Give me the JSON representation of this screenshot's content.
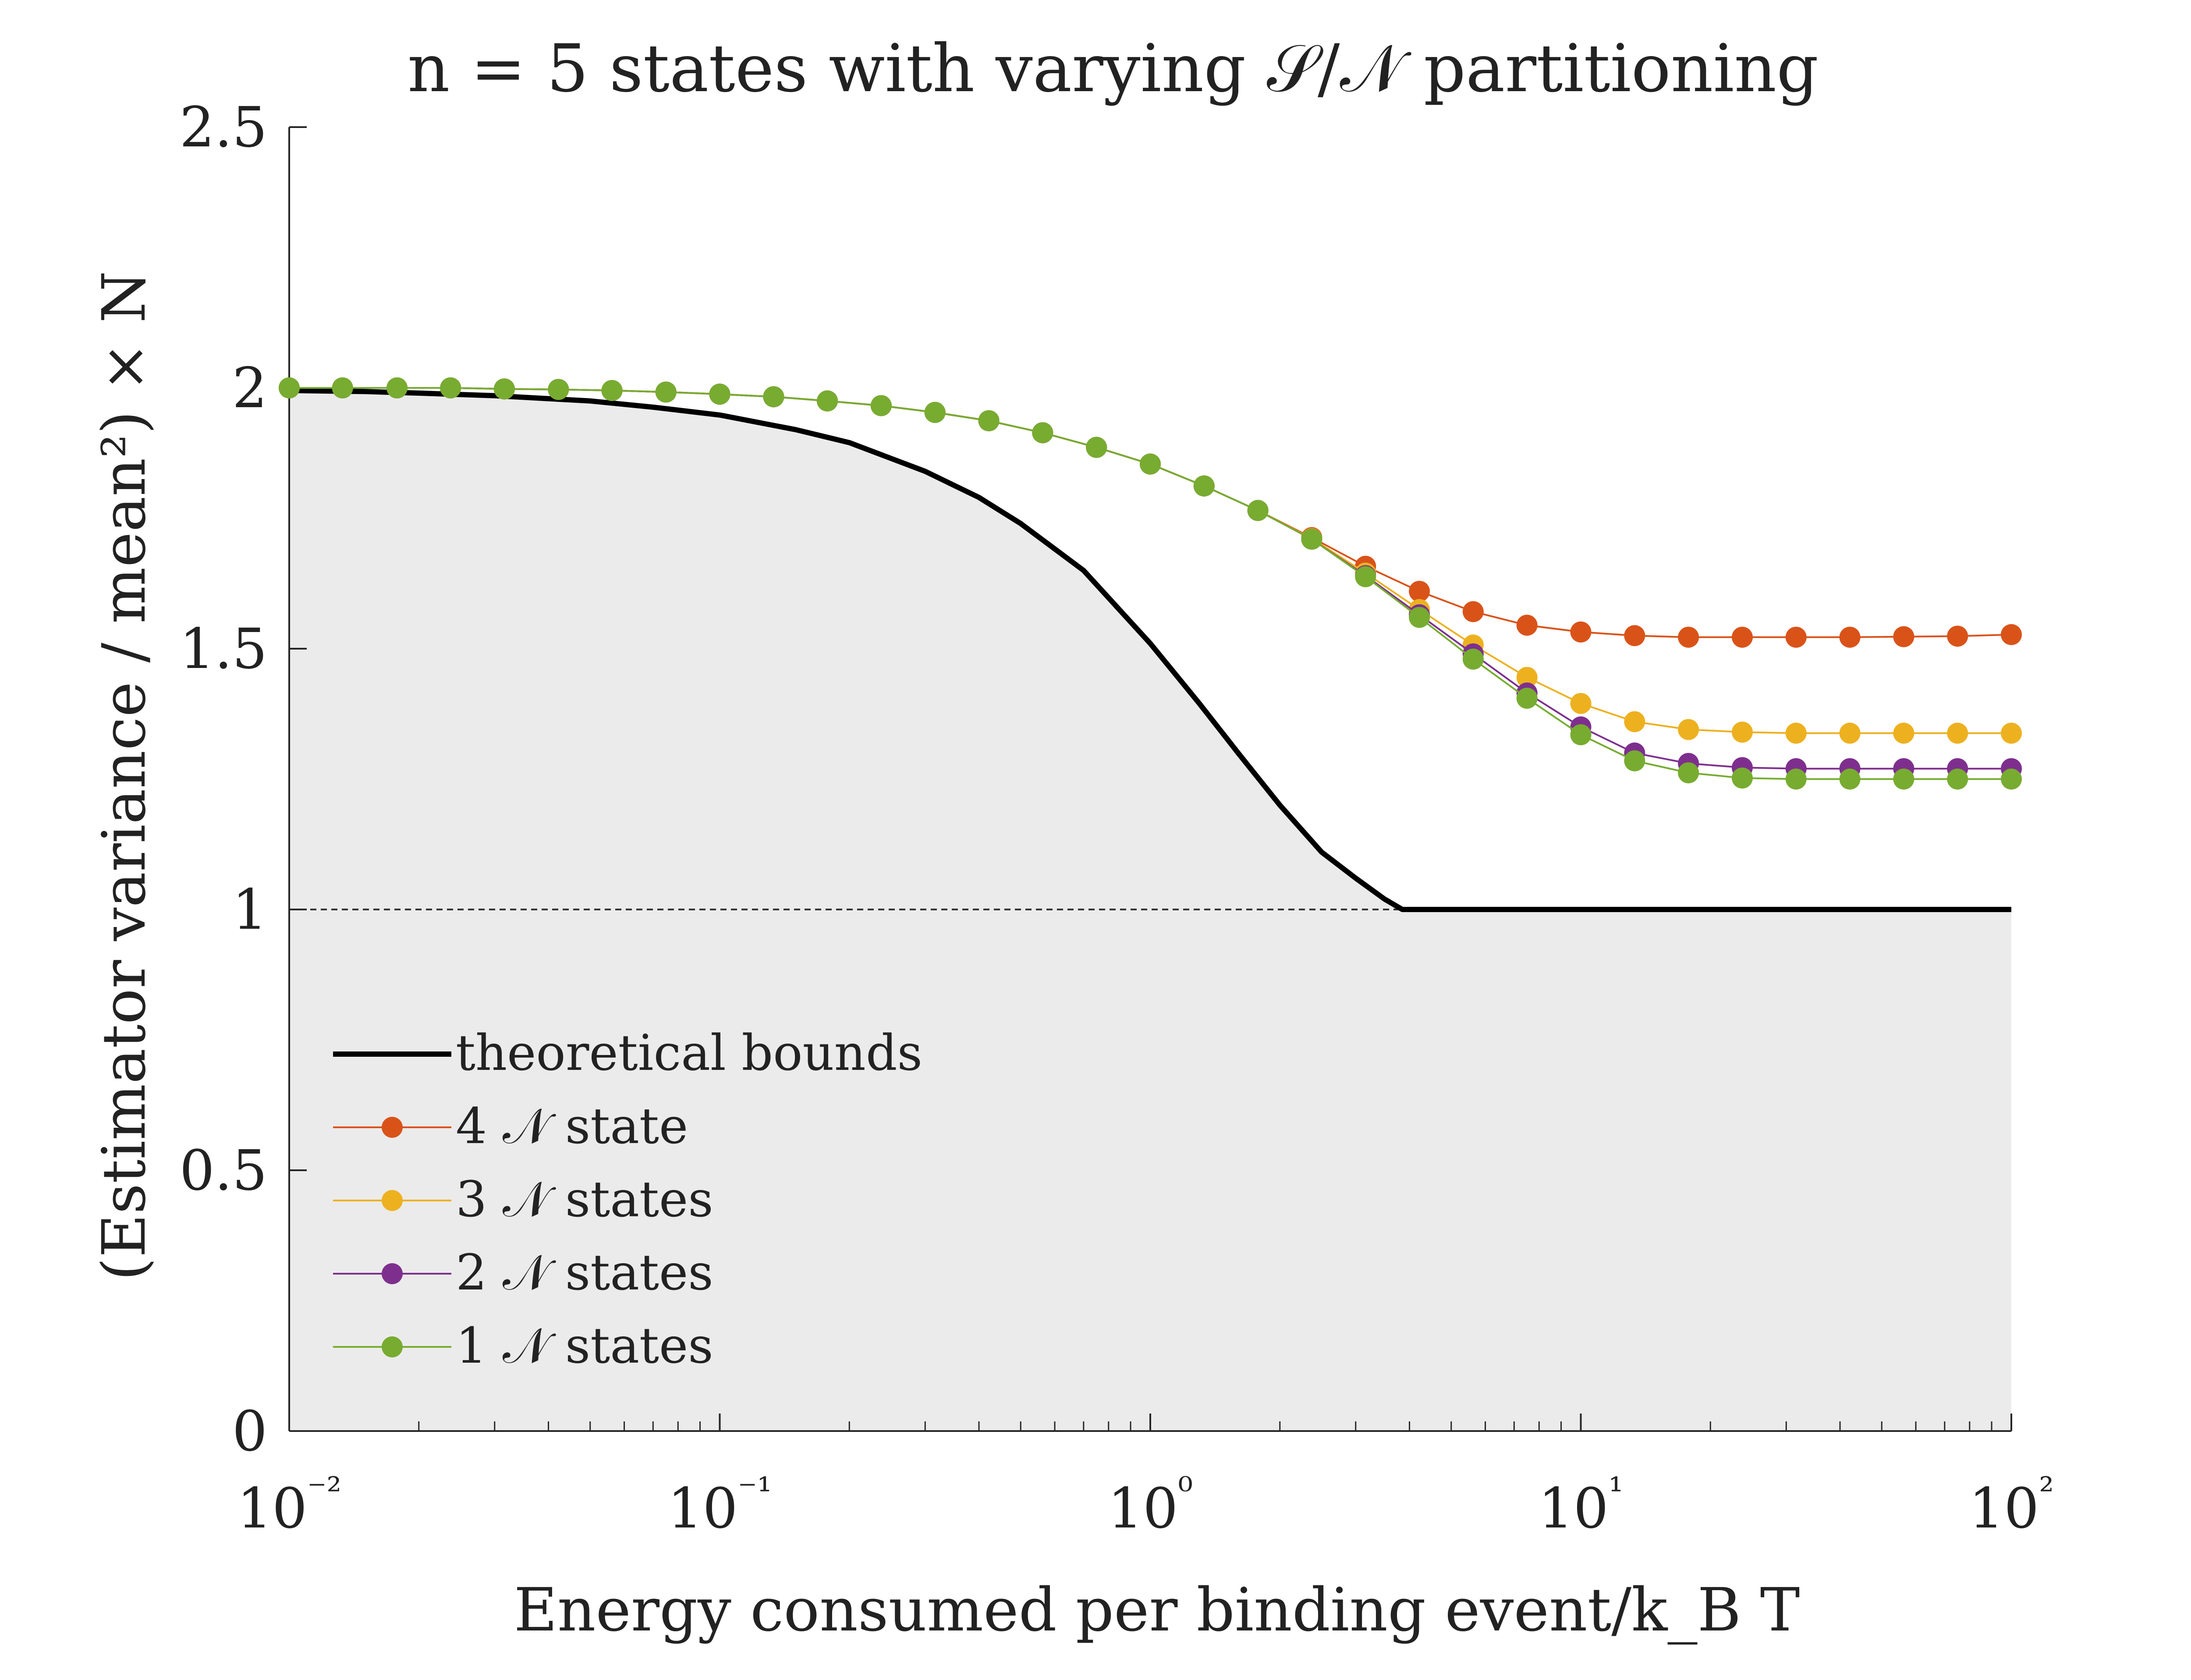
{
  "chart_data": {
    "type": "line",
    "title": "n = 5 states with varying 𝒮/𝒩 partitioning",
    "xlabel": "Energy consumed per binding event/k_B T",
    "ylabel": "(Estimator variance / mean²) × N",
    "xscale": "log",
    "xlim": [
      0.01,
      100
    ],
    "ylim": [
      0,
      2.5
    ],
    "x_tick_labels": [
      "10⁻²",
      "10⁻¹",
      "10⁰",
      "10¹",
      "10²"
    ],
    "y_tick_labels": [
      "0",
      "0.5",
      "1",
      "1.5",
      "2",
      "2.5"
    ],
    "y_ticks": [
      0,
      0.5,
      1,
      1.5,
      2,
      2.5
    ],
    "grid": false,
    "legend_position": "bottom-left",
    "reference_line": {
      "y": 1,
      "style": "dashed"
    },
    "bound": {
      "name": "theoretical bounds",
      "color": "#000000",
      "shaded_color": "#ebebeb",
      "x": [
        0.01,
        0.015,
        0.02,
        0.03,
        0.05,
        0.07,
        0.1,
        0.15,
        0.2,
        0.3,
        0.4,
        0.5,
        0.7,
        1,
        1.3,
        1.6,
        2,
        2.5,
        3,
        3.5,
        3.85,
        5,
        10,
        20,
        50,
        100
      ],
      "y": [
        1.995,
        1.993,
        1.99,
        1.985,
        1.975,
        1.963,
        1.948,
        1.92,
        1.895,
        1.84,
        1.79,
        1.74,
        1.65,
        1.51,
        1.395,
        1.3,
        1.2,
        1.11,
        1.06,
        1.02,
        1.0,
        1.0,
        1.0,
        1.0,
        1.0,
        1.0
      ]
    },
    "x": [
      0.01,
      0.0133,
      0.0178,
      0.0237,
      0.0316,
      0.0422,
      0.0562,
      0.075,
      0.1,
      0.1334,
      0.1778,
      0.2371,
      0.3162,
      0.4217,
      0.5623,
      0.7499,
      1,
      1.3335,
      1.7783,
      2.3714,
      3.1623,
      4.217,
      5.6234,
      7.4989,
      10,
      13.3352,
      17.7828,
      23.7137,
      31.6228,
      42.1697,
      56.2341,
      74.9894,
      100
    ],
    "series": [
      {
        "name": "4 𝒩 state",
        "color": "#d95319",
        "values": [
          2.0,
          2.0,
          2.0,
          2.0,
          1.998,
          1.997,
          1.995,
          1.992,
          1.988,
          1.983,
          1.975,
          1.966,
          1.953,
          1.937,
          1.914,
          1.886,
          1.854,
          1.812,
          1.765,
          1.713,
          1.658,
          1.61,
          1.571,
          1.545,
          1.532,
          1.525,
          1.522,
          1.522,
          1.522,
          1.522,
          1.523,
          1.524,
          1.527
        ]
      },
      {
        "name": "3 𝒩 states",
        "color": "#edb120",
        "values": [
          2.0,
          2.0,
          2.0,
          2.0,
          1.998,
          1.997,
          1.995,
          1.992,
          1.988,
          1.983,
          1.975,
          1.966,
          1.953,
          1.937,
          1.914,
          1.886,
          1.854,
          1.812,
          1.765,
          1.711,
          1.645,
          1.575,
          1.507,
          1.445,
          1.395,
          1.36,
          1.345,
          1.34,
          1.338,
          1.338,
          1.338,
          1.338,
          1.338
        ]
      },
      {
        "name": "2 𝒩 states",
        "color": "#7e2f8e",
        "values": [
          2.0,
          2.0,
          2.0,
          2.0,
          1.998,
          1.997,
          1.995,
          1.992,
          1.988,
          1.983,
          1.975,
          1.966,
          1.953,
          1.937,
          1.914,
          1.886,
          1.854,
          1.812,
          1.765,
          1.71,
          1.64,
          1.565,
          1.49,
          1.415,
          1.35,
          1.3,
          1.28,
          1.272,
          1.27,
          1.27,
          1.27,
          1.27,
          1.27
        ]
      },
      {
        "name": "1 𝒩 states",
        "color": "#77ac30",
        "values": [
          2.0,
          2.0,
          2.0,
          2.0,
          1.998,
          1.997,
          1.995,
          1.992,
          1.988,
          1.983,
          1.975,
          1.966,
          1.953,
          1.937,
          1.914,
          1.886,
          1.854,
          1.812,
          1.765,
          1.71,
          1.638,
          1.56,
          1.48,
          1.405,
          1.335,
          1.285,
          1.262,
          1.252,
          1.25,
          1.25,
          1.25,
          1.25,
          1.25
        ]
      }
    ]
  }
}
